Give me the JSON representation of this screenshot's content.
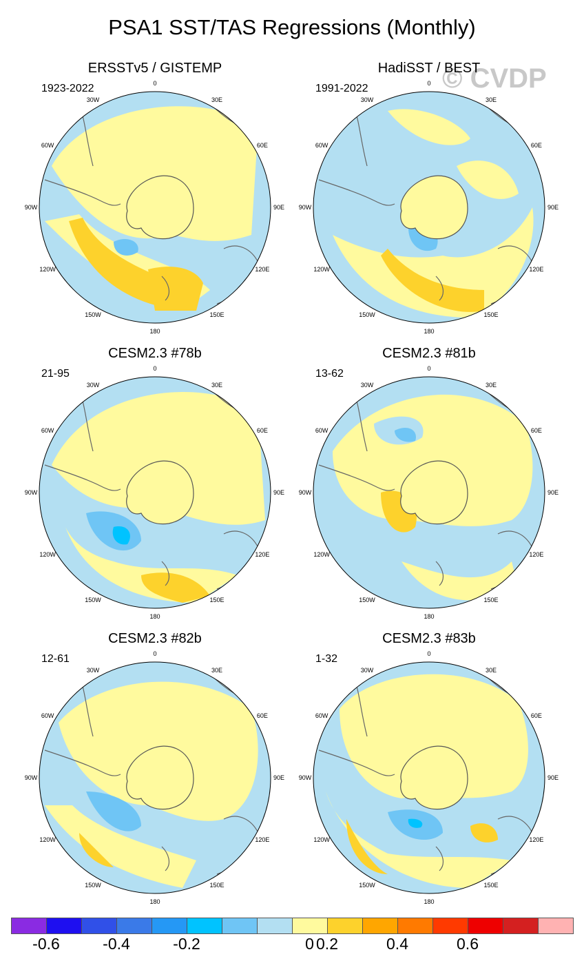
{
  "title": "PSA1 SST/TAS Regressions (Monthly)",
  "watermark": "© CVDP",
  "lon_labels": [
    "0",
    "30E",
    "60E",
    "90E",
    "120E",
    "150E",
    "180",
    "150W",
    "120W",
    "90W",
    "60W",
    "30W"
  ],
  "panels": [
    {
      "title": "ERSSTv5 / GISTEMP",
      "years": "1923-2022"
    },
    {
      "title": "HadiSST / BEST",
      "years": "1991-2022"
    },
    {
      "title": "CESM2.3 #78b",
      "years": "21-95"
    },
    {
      "title": "CESM2.3 #81b",
      "years": "13-62"
    },
    {
      "title": "CESM2.3 #82b",
      "years": "12-61"
    },
    {
      "title": "CESM2.3 #83b",
      "years": "1-32"
    }
  ],
  "colorbar": {
    "colors": [
      "#8a2be2",
      "#1e0ff0",
      "#3050e8",
      "#3a7ae8",
      "#2598f5",
      "#00c3ff",
      "#6fc5f5",
      "#b3dff2",
      "#fffa9e",
      "#fdd22c",
      "#ffa600",
      "#ff7a00",
      "#ff3a00",
      "#ee0000",
      "#d42020",
      "#ffb2b2"
    ],
    "labels": [
      "-0.6",
      "-0.4",
      "-0.2",
      "0",
      "0.2",
      "0.4",
      "0.6"
    ],
    "label_positions": [
      -0.6,
      -0.4,
      -0.2,
      0,
      0.2,
      0.4,
      0.6
    ]
  },
  "colors": {
    "positive": "#fffa9e",
    "positive_strong": "#fdd22c",
    "negative": "#b3dff2",
    "negative_strong": "#6fc5f5",
    "negative_stronger": "#00c3ff"
  }
}
